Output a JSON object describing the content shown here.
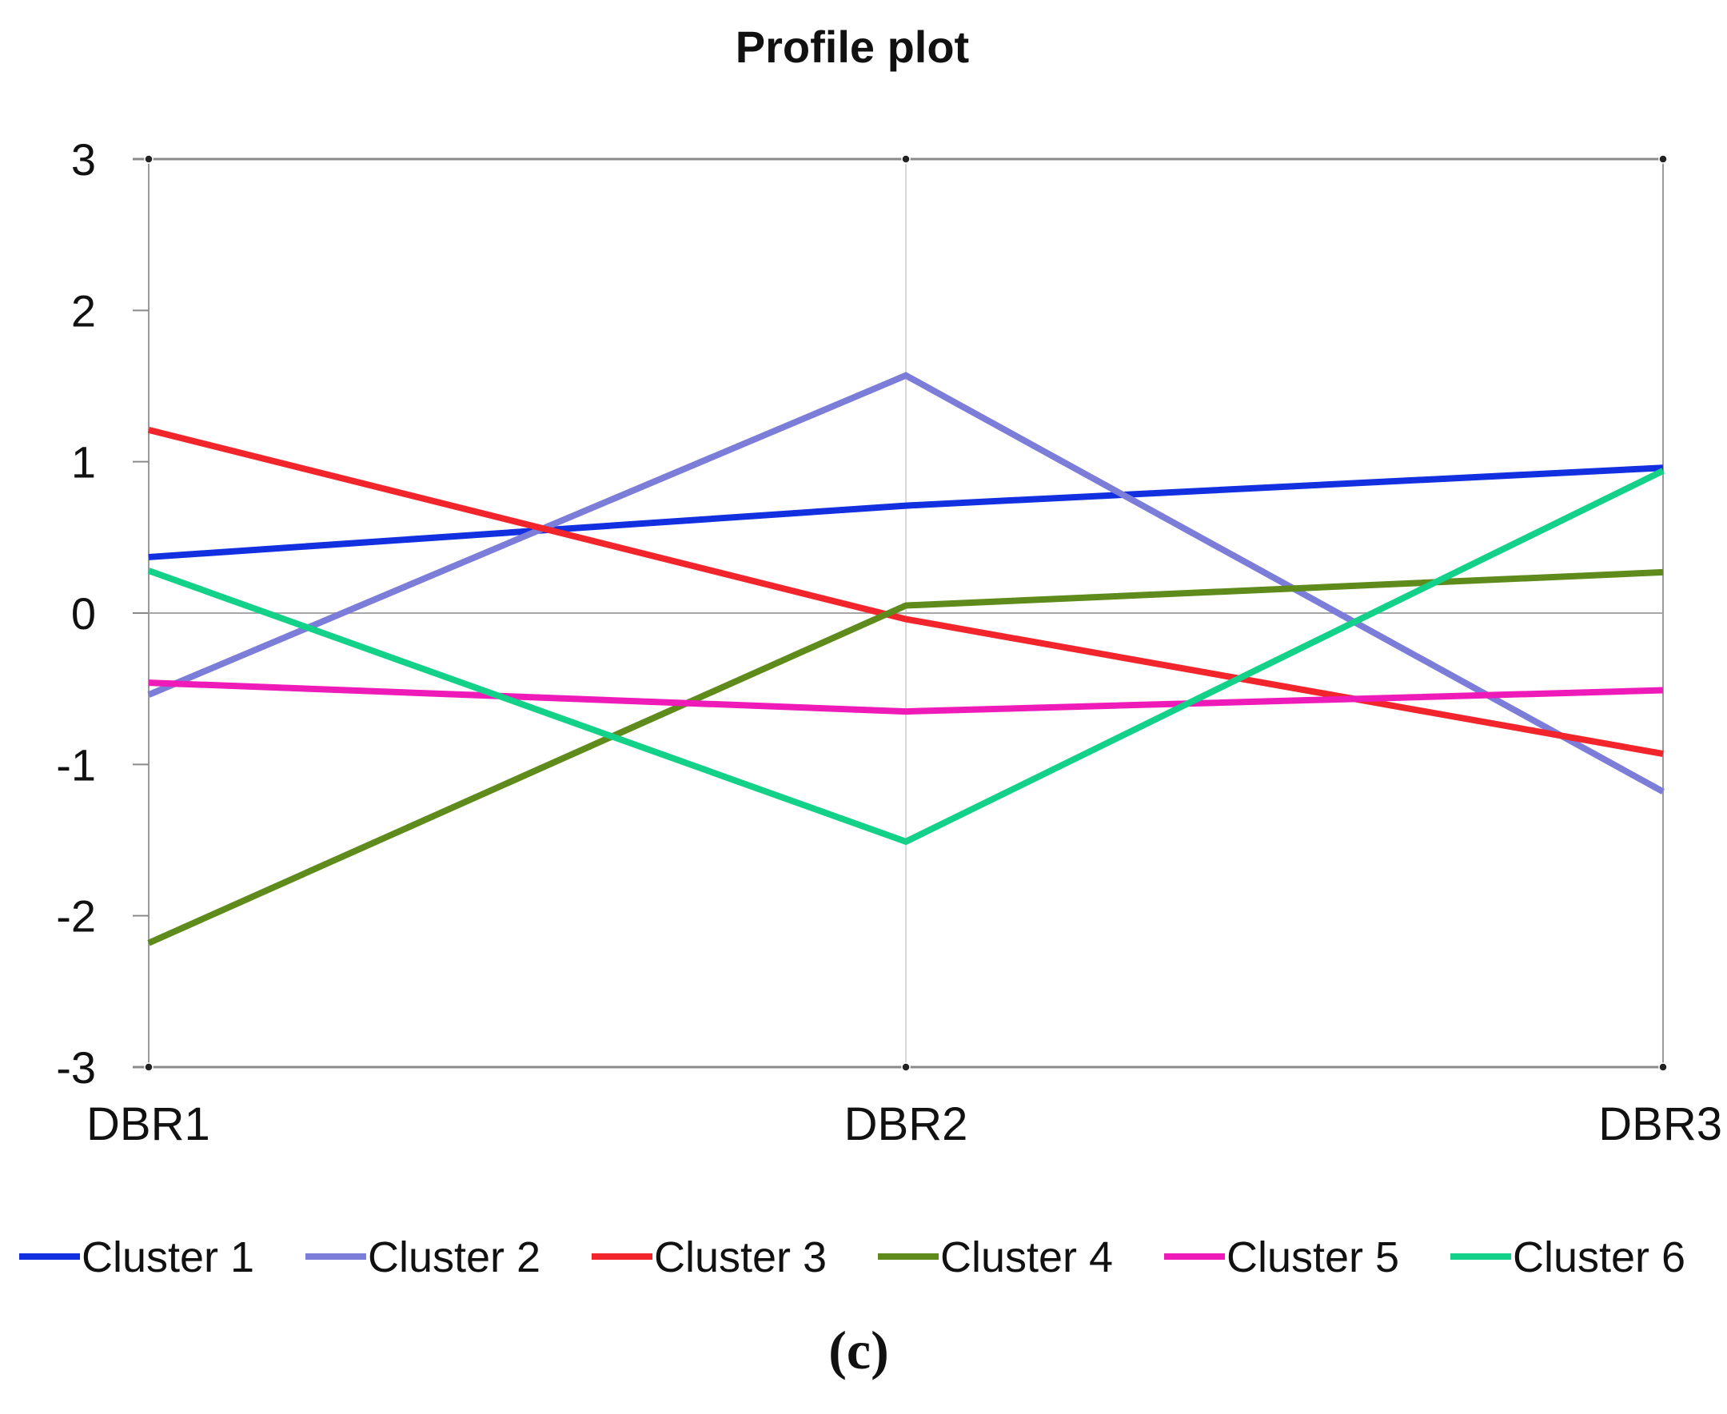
{
  "chart_data": {
    "type": "line",
    "title": "Profile plot",
    "xlabel": "",
    "ylabel": "",
    "categories": [
      "DBR1",
      "DBR2",
      "DBR3"
    ],
    "ylim": [
      -3,
      3
    ],
    "yticks": [
      3,
      2,
      1,
      0,
      -1,
      -2,
      -3
    ],
    "legend_position": "bottom",
    "caption": "(c)",
    "series": [
      {
        "name": "Cluster 1",
        "color": "#1230E0",
        "values": [
          0.37,
          0.71,
          0.96
        ]
      },
      {
        "name": "Cluster 2",
        "color": "#7B7DD8",
        "values": [
          -0.54,
          1.57,
          -1.18
        ]
      },
      {
        "name": "Cluster 3",
        "color": "#F2252D",
        "values": [
          1.21,
          -0.04,
          -0.93
        ]
      },
      {
        "name": "Cluster 4",
        "color": "#5E8B1B",
        "values": [
          -2.18,
          0.05,
          0.27
        ]
      },
      {
        "name": "Cluster 5",
        "color": "#EE1BB8",
        "values": [
          -0.46,
          -0.65,
          -0.51
        ]
      },
      {
        "name": "Cluster 6",
        "color": "#14D18A",
        "values": [
          0.28,
          -1.51,
          0.94
        ]
      }
    ]
  }
}
